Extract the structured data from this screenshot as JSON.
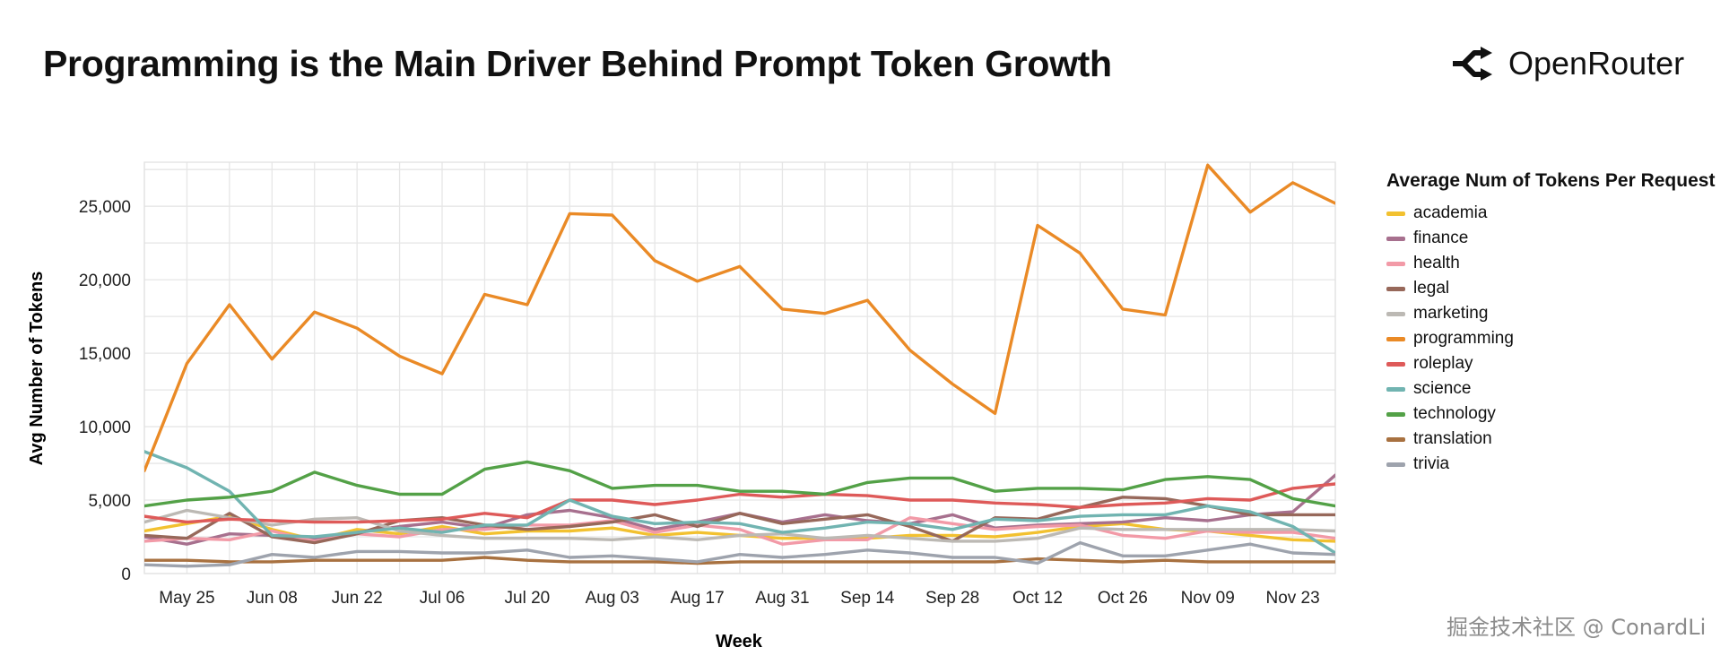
{
  "title": "Programming is the Main Driver Behind Prompt Token Growth",
  "brand": {
    "name": "OpenRouter",
    "icon": "openrouter-logo-icon"
  },
  "watermark": "掘金技术社区 @ ConardLi",
  "chart_data": {
    "type": "line",
    "xlabel": "Week",
    "ylabel": "Avg Number of Tokens",
    "ylim": [
      0,
      28000
    ],
    "y_ticks": [
      0,
      5000,
      10000,
      15000,
      20000,
      25000
    ],
    "y_tick_labels": [
      "0",
      "5,000",
      "10,000",
      "15,000",
      "20,000",
      "25,000"
    ],
    "x": [
      "May 18",
      "May 25",
      "Jun 01",
      "Jun 08",
      "Jun 15",
      "Jun 22",
      "Jun 29",
      "Jul 06",
      "Jul 13",
      "Jul 20",
      "Jul 27",
      "Aug 03",
      "Aug 10",
      "Aug 17",
      "Aug 24",
      "Aug 31",
      "Sep 07",
      "Sep 14",
      "Sep 21",
      "Sep 28",
      "Oct 05",
      "Oct 12",
      "Oct 19",
      "Oct 26",
      "Nov 02",
      "Nov 09",
      "Nov 16",
      "Nov 23",
      "Nov 30"
    ],
    "x_tick_labels": [
      "May 25",
      "Jun 08",
      "Jun 22",
      "Jul 06",
      "Jul 20",
      "Aug 03",
      "Aug 17",
      "Aug 31",
      "Sep 14",
      "Sep 28",
      "Oct 12",
      "Oct 26",
      "Nov 09",
      "Nov 23"
    ],
    "grid": true,
    "legend": {
      "title": "Average Num of Tokens Per Request",
      "position": "right"
    },
    "series": [
      {
        "name": "academia",
        "color": "#f2c130",
        "values": [
          2900,
          3400,
          3900,
          3000,
          2300,
          3000,
          2700,
          3200,
          2700,
          2900,
          2900,
          3100,
          2600,
          2800,
          2600,
          2400,
          2400,
          2400,
          2600,
          2600,
          2500,
          2800,
          3200,
          3400,
          3000,
          2900,
          2600,
          2300,
          2200
        ]
      },
      {
        "name": "finance",
        "color": "#a7708e",
        "values": [
          2500,
          2000,
          2700,
          2600,
          2300,
          2800,
          3200,
          3500,
          3100,
          4000,
          4300,
          3800,
          3000,
          3500,
          4100,
          3500,
          4000,
          3600,
          3400,
          4000,
          3100,
          3300,
          3400,
          3500,
          3800,
          3600,
          4000,
          4200,
          6700
        ]
      },
      {
        "name": "health",
        "color": "#f29aa7",
        "values": [
          2200,
          2400,
          2300,
          2900,
          2200,
          2700,
          2500,
          3000,
          3000,
          3300,
          3300,
          3600,
          2800,
          3300,
          3000,
          2000,
          2300,
          2300,
          3800,
          3400,
          3000,
          3200,
          3300,
          2600,
          2400,
          2900,
          2800,
          2800,
          2400
        ]
      },
      {
        "name": "legal",
        "color": "#97685a",
        "values": [
          2600,
          2400,
          4100,
          2500,
          2100,
          2700,
          3600,
          3800,
          3300,
          3000,
          3200,
          3500,
          4000,
          3200,
          4100,
          3400,
          3700,
          4000,
          3200,
          2200,
          3800,
          3700,
          4500,
          5200,
          5100,
          4600,
          4000,
          4000,
          4000
        ]
      },
      {
        "name": "marketing",
        "color": "#bcb9b4",
        "values": [
          3500,
          4300,
          3800,
          3300,
          3700,
          3800,
          2900,
          2600,
          2400,
          2400,
          2400,
          2300,
          2500,
          2300,
          2600,
          2700,
          2400,
          2600,
          2400,
          2200,
          2200,
          2400,
          3100,
          3000,
          3000,
          3000,
          3000,
          3000,
          2900
        ]
      },
      {
        "name": "programming",
        "color": "#ea8a26",
        "values": [
          7000,
          14300,
          18300,
          14600,
          17800,
          16700,
          14800,
          13600,
          19000,
          18300,
          24500,
          24400,
          21300,
          19900,
          20900,
          18000,
          17700,
          18600,
          15200,
          12900,
          10900,
          23700,
          21800,
          18000,
          17600,
          27800,
          24600,
          26600,
          25200
        ]
      },
      {
        "name": "roleplay",
        "color": "#de5a59",
        "values": [
          3900,
          3500,
          3700,
          3600,
          3500,
          3500,
          3600,
          3700,
          4100,
          3800,
          5000,
          5000,
          4700,
          5000,
          5400,
          5200,
          5400,
          5300,
          5000,
          5000,
          4800,
          4700,
          4500,
          4700,
          4800,
          5100,
          5000,
          5800,
          6100
        ]
      },
      {
        "name": "science",
        "color": "#71b4b1",
        "values": [
          8300,
          7200,
          5600,
          2600,
          2500,
          2800,
          3100,
          2800,
          3300,
          3300,
          5000,
          3900,
          3400,
          3500,
          3400,
          2800,
          3100,
          3500,
          3400,
          3000,
          3700,
          3600,
          3900,
          4000,
          4000,
          4600,
          4200,
          3200,
          1400
        ]
      },
      {
        "name": "technology",
        "color": "#53a147",
        "values": [
          4600,
          5000,
          5200,
          5600,
          6900,
          6000,
          5400,
          5400,
          7100,
          7600,
          7000,
          5800,
          6000,
          6000,
          5600,
          5600,
          5400,
          6200,
          6500,
          6500,
          5600,
          5800,
          5800,
          5700,
          6400,
          6600,
          6400,
          5100,
          4600
        ]
      },
      {
        "name": "translation",
        "color": "#a87140",
        "values": [
          900,
          900,
          800,
          800,
          900,
          900,
          900,
          900,
          1100,
          900,
          800,
          800,
          800,
          700,
          800,
          800,
          800,
          800,
          800,
          800,
          800,
          1000,
          900,
          800,
          900,
          800,
          800,
          800,
          800
        ]
      },
      {
        "name": "trivia",
        "color": "#9ea3ad",
        "values": [
          600,
          500,
          600,
          1300,
          1100,
          1500,
          1500,
          1400,
          1400,
          1600,
          1100,
          1200,
          1000,
          800,
          1300,
          1100,
          1300,
          1600,
          1400,
          1100,
          1100,
          700,
          2100,
          1200,
          1200,
          1600,
          2000,
          1400,
          1300
        ]
      }
    ]
  }
}
